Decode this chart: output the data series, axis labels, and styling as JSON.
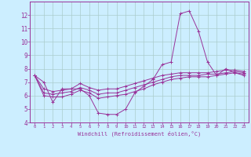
{
  "xlabel": "Windchill (Refroidissement éolien,°C)",
  "background_color": "#cceeff",
  "grid_color": "#aacccc",
  "line_color": "#993399",
  "xlim": [
    -0.5,
    23.5
  ],
  "ylim": [
    4,
    13
  ],
  "yticks": [
    4,
    5,
    6,
    7,
    8,
    9,
    10,
    11,
    12
  ],
  "xticks": [
    0,
    1,
    2,
    3,
    4,
    5,
    6,
    7,
    8,
    9,
    10,
    11,
    12,
    13,
    14,
    15,
    16,
    17,
    18,
    19,
    20,
    21,
    22,
    23
  ],
  "series": [
    [
      7.5,
      7.0,
      5.5,
      6.5,
      6.5,
      6.5,
      6.0,
      4.7,
      4.6,
      4.6,
      5.0,
      6.2,
      6.7,
      7.2,
      8.3,
      8.5,
      12.1,
      12.3,
      10.8,
      8.5,
      7.5,
      8.0,
      7.7,
      7.5
    ],
    [
      7.5,
      6.0,
      5.9,
      5.9,
      6.1,
      6.4,
      6.2,
      5.8,
      5.9,
      6.0,
      6.1,
      6.3,
      6.5,
      6.8,
      7.0,
      7.2,
      7.3,
      7.4,
      7.4,
      7.4,
      7.5,
      7.6,
      7.7,
      7.6
    ],
    [
      7.5,
      6.2,
      6.1,
      6.2,
      6.3,
      6.6,
      6.4,
      6.1,
      6.2,
      6.2,
      6.4,
      6.6,
      6.8,
      7.0,
      7.2,
      7.4,
      7.5,
      7.5,
      7.5,
      7.6,
      7.6,
      7.7,
      7.8,
      7.7
    ],
    [
      7.5,
      6.5,
      6.3,
      6.4,
      6.5,
      6.9,
      6.6,
      6.4,
      6.5,
      6.5,
      6.7,
      6.9,
      7.1,
      7.3,
      7.5,
      7.6,
      7.7,
      7.7,
      7.7,
      7.7,
      7.8,
      7.9,
      7.9,
      7.8
    ]
  ]
}
